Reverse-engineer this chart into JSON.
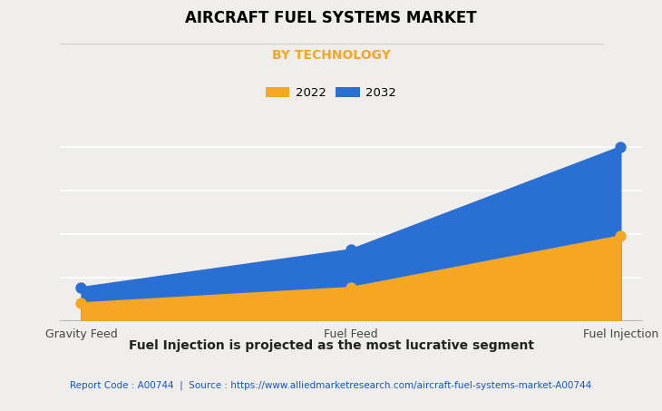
{
  "title": "AIRCRAFT FUEL SYSTEMS MARKET",
  "subtitle": "BY TECHNOLOGY",
  "categories": [
    "Gravity Feed",
    "Fuel Feed",
    "Fuel Injection"
  ],
  "series_2022": [
    0.38,
    0.72,
    1.85
  ],
  "series_2032": [
    0.72,
    1.55,
    3.8
  ],
  "color_2022": "#F5A623",
  "color_2032": "#2A6FD4",
  "legend_labels": [
    "2022",
    "2032"
  ],
  "footer_bold": "Fuel Injection is projected as the most lucrative segment",
  "footer_small": "Report Code : A00744  |  Source : https://www.alliedmarketresearch.com/aircraft-fuel-systems-market-A00744",
  "subtitle_color": "#F5A623",
  "footer_link_color": "#1155CC",
  "background_color": "#F0EEEA",
  "plot_background_color": "#F0EEEA",
  "title_fontsize": 12,
  "subtitle_fontsize": 10,
  "tick_fontsize": 9,
  "footer_fontsize": 10,
  "footer_small_fontsize": 7.5
}
